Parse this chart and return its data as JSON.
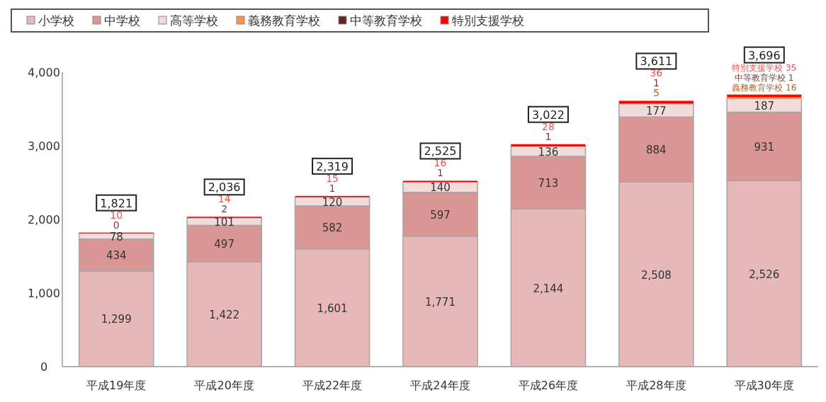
{
  "chart_data": {
    "type": "bar",
    "stacked": true,
    "legend": "top",
    "grid": false,
    "categories": [
      "平成19年度",
      "平成20年度",
      "平成22年度",
      "平成24年度",
      "平成26年度",
      "平成28年度",
      "平成30年度"
    ],
    "ylim": [
      0,
      4000
    ],
    "yticks": [
      {
        "value": 0,
        "label": "0"
      },
      {
        "value": 1000,
        "label": "1,000"
      },
      {
        "value": 2000,
        "label": "2,000"
      },
      {
        "value": 3000,
        "label": "3,000"
      },
      {
        "value": 4000,
        "label": "4,000"
      }
    ],
    "series": [
      {
        "name": "小学校",
        "color": "#e6b8b7",
        "values": [
          1299,
          1422,
          1601,
          1771,
          2144,
          2508,
          2526
        ],
        "value_labels": [
          "1,299",
          "1,422",
          "1,601",
          "1,771",
          "2,144",
          "2,508",
          "2,526"
        ]
      },
      {
        "name": "中学校",
        "color": "#d99694",
        "values": [
          434,
          497,
          582,
          597,
          713,
          884,
          931
        ],
        "value_labels": [
          "434",
          "497",
          "582",
          "597",
          "713",
          "884",
          "931"
        ]
      },
      {
        "name": "高等学校",
        "color": "#f2dcdb",
        "values": [
          78,
          101,
          120,
          140,
          136,
          177,
          187
        ],
        "value_labels": [
          "78",
          "101",
          "120",
          "140",
          "136",
          "177",
          "187"
        ]
      },
      {
        "name": "義務教育学校",
        "color": "#f79646",
        "values": [
          null,
          null,
          null,
          null,
          null,
          5,
          16
        ],
        "value_labels": [
          null,
          null,
          null,
          null,
          null,
          "5",
          "義務教育学校 16"
        ]
      },
      {
        "name": "中等教育学校",
        "color": "#632523",
        "values": [
          0,
          2,
          1,
          1,
          1,
          1,
          1
        ],
        "value_labels": [
          "0",
          "2",
          "1",
          "1",
          "1",
          "1",
          "中等教育学校 1"
        ]
      },
      {
        "name": "特別支援学校",
        "color": "#ff0000",
        "values": [
          10,
          14,
          15,
          16,
          28,
          36,
          35
        ],
        "value_labels": [
          "10",
          "14",
          "15",
          "16",
          "28",
          "36",
          "特別支援学校 35"
        ]
      }
    ],
    "totals": [
      "1,821",
      "2,036",
      "2,319",
      "2,525",
      "3,022",
      "3,611",
      "3,696"
    ]
  }
}
